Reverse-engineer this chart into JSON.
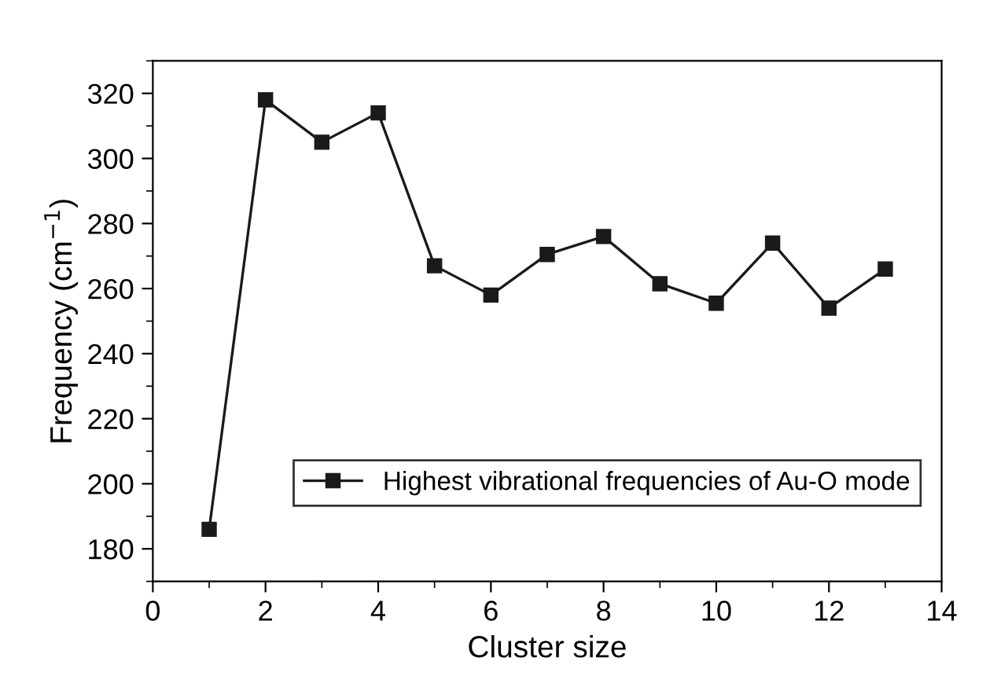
{
  "chart_data": {
    "type": "line",
    "xlabel": "Cluster size",
    "ylabel": "Frequency (cm$^{−1}$)",
    "x": [
      1,
      2,
      3,
      4,
      5,
      6,
      7,
      8,
      9,
      10,
      11,
      12,
      13
    ],
    "series": [
      {
        "name": "Highest vibrational frequencies of Au-O mode",
        "color": "#1a1a1a",
        "values": [
          186,
          318,
          305,
          314,
          267,
          258,
          270.5,
          276,
          261.5,
          255.5,
          274,
          254,
          266
        ]
      }
    ],
    "xlim": [
      0,
      14
    ],
    "xticks": [
      0,
      2,
      4,
      6,
      8,
      10,
      12,
      14
    ],
    "ylim": [
      170,
      330
    ],
    "yticks": [
      180,
      200,
      220,
      240,
      260,
      280,
      300,
      320
    ],
    "grid": false,
    "legend": "bottom right",
    "marker": "square",
    "line_style": "solid"
  }
}
